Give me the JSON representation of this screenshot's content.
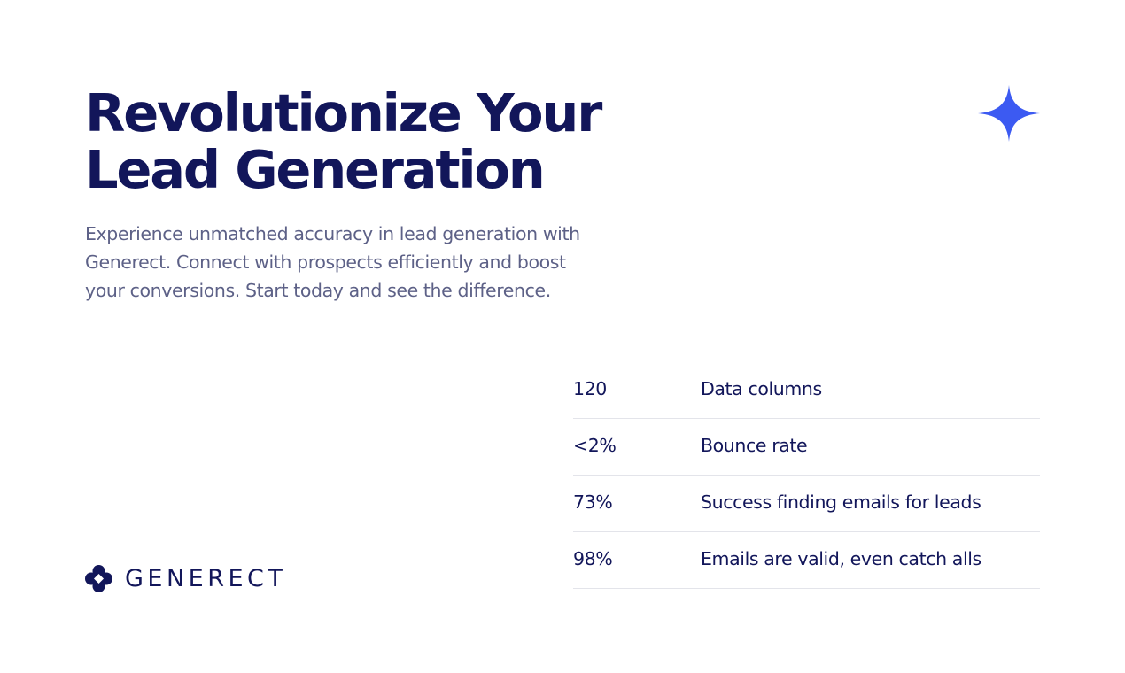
{
  "header": {
    "title_lines": [
      "Revolutionize Your",
      "Lead Generation"
    ],
    "description": "Experience unmatched accuracy in lead generation with Generect. Connect with prospects efficiently and boost your conversions. Start today and see the difference."
  },
  "stats": {
    "rows": [
      [
        "120",
        "Data columns"
      ],
      [
        "<2%",
        "Bounce rate"
      ],
      [
        "73%",
        "Success finding emails for leads"
      ],
      [
        "98%",
        "Emails are valid, even catch alls"
      ]
    ]
  },
  "logo": {
    "text": "GENERECT"
  }
}
